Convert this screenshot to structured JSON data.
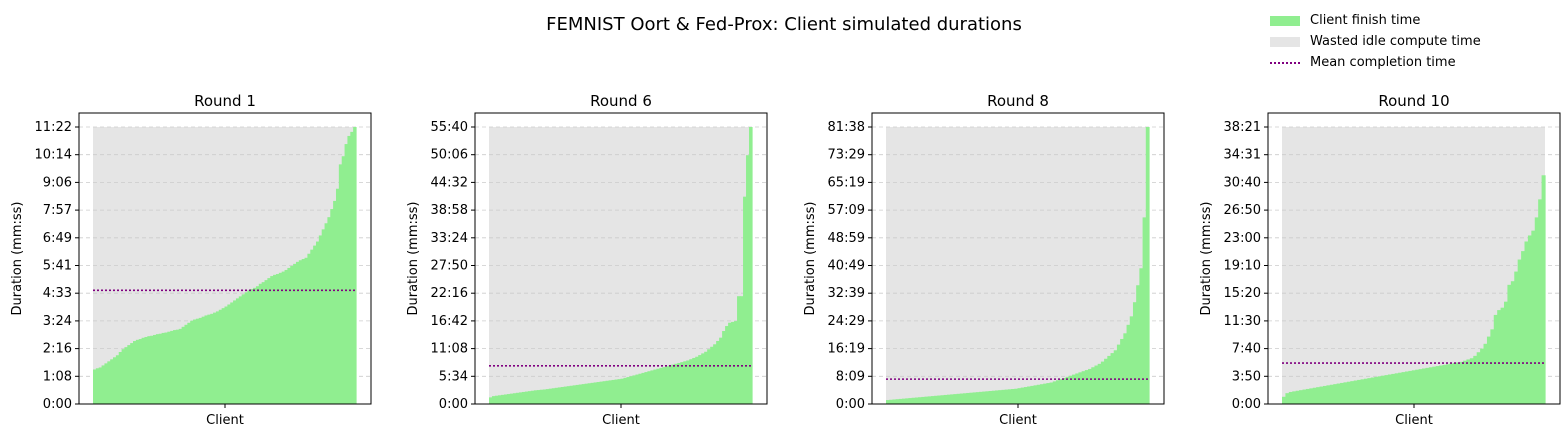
{
  "figure_title": "FEMNIST Oort & Fed-Prox: Client simulated durations",
  "colors": {
    "finish": "#90EE90",
    "idle": "#E5E5E5",
    "mean": "#800080"
  },
  "legend": [
    {
      "label": "Client finish time",
      "kind": "finish"
    },
    {
      "label": "Wasted idle compute time",
      "kind": "idle"
    },
    {
      "label": "Mean completion time",
      "kind": "mean"
    }
  ],
  "chart_data": [
    {
      "type": "bar",
      "title": "Round 1",
      "xlabel": "Client",
      "ylabel": "Duration (mm:ss)",
      "yticks": [
        "0:00",
        "1:08",
        "2:16",
        "3:24",
        "4:33",
        "5:41",
        "6:49",
        "7:57",
        "9:06",
        "10:14",
        "11:22"
      ],
      "ymax_seconds": 682,
      "mean_seconds": 280,
      "client_durations_seconds": [
        85,
        88,
        90,
        95,
        100,
        105,
        110,
        115,
        120,
        128,
        135,
        140,
        145,
        150,
        155,
        158,
        160,
        163,
        165,
        167,
        168,
        170,
        172,
        173,
        175,
        176,
        178,
        180,
        182,
        183,
        185,
        190,
        195,
        200,
        205,
        208,
        210,
        212,
        215,
        218,
        220,
        222,
        225,
        228,
        232,
        236,
        240,
        245,
        250,
        255,
        260,
        265,
        270,
        275,
        280,
        283,
        286,
        290,
        296,
        300,
        305,
        310,
        315,
        318,
        320,
        323,
        326,
        330,
        335,
        340,
        345,
        350,
        354,
        357,
        360,
        370,
        380,
        390,
        400,
        415,
        430,
        445,
        460,
        480,
        500,
        530,
        590,
        610,
        640,
        660,
        670,
        682
      ]
    },
    {
      "type": "bar",
      "title": "Round 6",
      "xlabel": "Client",
      "ylabel": "Duration (mm:ss)",
      "yticks": [
        "0:00",
        "5:34",
        "11:08",
        "16:42",
        "22:16",
        "27:50",
        "33:24",
        "38:58",
        "44:32",
        "50:06",
        "55:40"
      ],
      "ymax_seconds": 3340,
      "mean_seconds": 460,
      "client_durations_seconds": [
        80,
        95,
        100,
        105,
        110,
        115,
        120,
        125,
        130,
        135,
        140,
        145,
        150,
        155,
        160,
        165,
        168,
        172,
        175,
        180,
        185,
        190,
        195,
        200,
        205,
        210,
        215,
        220,
        225,
        230,
        235,
        240,
        245,
        250,
        255,
        260,
        265,
        270,
        275,
        280,
        285,
        290,
        295,
        300,
        305,
        315,
        325,
        335,
        345,
        355,
        365,
        375,
        385,
        395,
        405,
        415,
        425,
        435,
        445,
        455,
        465,
        475,
        485,
        495,
        505,
        515,
        525,
        540,
        555,
        570,
        590,
        610,
        630,
        660,
        690,
        720,
        760,
        800,
        880,
        940,
        980,
        990,
        1000,
        1300,
        1300,
        2500,
        3000,
        3340
      ]
    },
    {
      "type": "bar",
      "title": "Round 8",
      "xlabel": "Client",
      "ylabel": "Duration (mm:ss)",
      "yticks": [
        "0:00",
        "8:09",
        "16:19",
        "24:29",
        "32:39",
        "40:49",
        "48:59",
        "57:09",
        "65:19",
        "73:29",
        "81:38"
      ],
      "ymax_seconds": 4898,
      "mean_seconds": 440,
      "client_durations_seconds": [
        70,
        75,
        80,
        85,
        90,
        95,
        100,
        105,
        110,
        115,
        120,
        125,
        130,
        135,
        140,
        145,
        150,
        155,
        160,
        165,
        170,
        175,
        180,
        185,
        190,
        195,
        200,
        205,
        210,
        215,
        220,
        225,
        230,
        235,
        240,
        245,
        250,
        255,
        260,
        265,
        270,
        280,
        290,
        300,
        310,
        320,
        330,
        340,
        350,
        360,
        370,
        380,
        400,
        420,
        440,
        460,
        480,
        500,
        520,
        540,
        560,
        580,
        600,
        620,
        650,
        680,
        710,
        750,
        800,
        850,
        900,
        950,
        1050,
        1150,
        1250,
        1400,
        1550,
        1800,
        2100,
        2400,
        3300,
        4898
      ]
    },
    {
      "type": "bar",
      "title": "Round 10",
      "xlabel": "Client",
      "ylabel": "Duration (mm:ss)",
      "yticks": [
        "0:00",
        "3:50",
        "7:40",
        "11:30",
        "15:20",
        "19:10",
        "23:00",
        "26:50",
        "30:40",
        "34:31",
        "38:21"
      ],
      "ymax_seconds": 2301,
      "mean_seconds": 340,
      "client_durations_seconds": [
        60,
        90,
        100,
        105,
        110,
        115,
        120,
        125,
        130,
        135,
        140,
        145,
        150,
        155,
        160,
        165,
        170,
        175,
        180,
        185,
        190,
        195,
        200,
        205,
        210,
        215,
        220,
        225,
        230,
        235,
        240,
        245,
        250,
        255,
        260,
        265,
        270,
        275,
        280,
        285,
        290,
        295,
        300,
        305,
        310,
        315,
        320,
        325,
        330,
        335,
        340,
        345,
        350,
        360,
        370,
        380,
        400,
        430,
        460,
        500,
        560,
        620,
        740,
        780,
        800,
        850,
        990,
        1020,
        1100,
        1200,
        1270,
        1350,
        1400,
        1440,
        1550,
        1700,
        1900
      ]
    }
  ]
}
